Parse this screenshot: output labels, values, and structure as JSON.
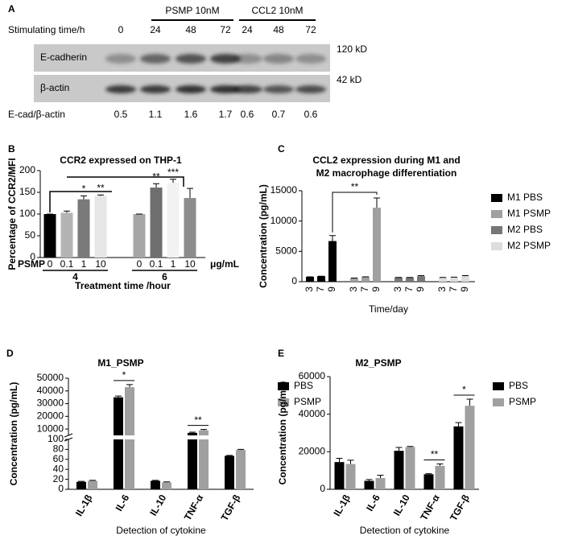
{
  "blot": {
    "label": "A",
    "treatments": [
      "PSMP 10nM",
      "CCL2 10nM"
    ],
    "time_label": "Stimulating time/h",
    "times": [
      "0",
      "24",
      "48",
      "72",
      "24",
      "48",
      "72"
    ],
    "rows": [
      {
        "name": "E-cadherin",
        "size": "120 kD"
      },
      {
        "name": "β-actin",
        "size": "42 kD"
      }
    ],
    "ratio_label": "E-cad/β-actin",
    "ratios": [
      0.5,
      1.1,
      1.6,
      1.7,
      0.6,
      0.7,
      0.6
    ]
  },
  "chart_data": [
    {
      "type": "bar",
      "label": "B",
      "title": "CCR2 expressed on THP-1",
      "y_label": "Percentage of CCR2/MFI",
      "x_label": "Treatment time /hour",
      "dose_label": "PSMP",
      "dose_unit": "μg/mL",
      "categories": [
        "0",
        "0.1",
        "1",
        "10",
        "0",
        "0.1",
        "1",
        "10"
      ],
      "groups": [
        "4",
        "6"
      ],
      "values": [
        100,
        103,
        134,
        142,
        100,
        161,
        172,
        137
      ],
      "errors": [
        0,
        4,
        8,
        2,
        0,
        9,
        8,
        22
      ],
      "colors": [
        "#000000",
        "#b4b4b4",
        "#7a7a7a",
        "#e6e6e6",
        "#a6a6a6",
        "#6e6e6e",
        "#f2f2f2",
        "#8c8c8c"
      ],
      "significance": [
        null,
        null,
        "*",
        "**",
        null,
        "**",
        "***",
        null
      ],
      "ylim": [
        0,
        200
      ],
      "yticks": [
        0,
        50,
        100,
        150,
        200
      ]
    },
    {
      "type": "grouped_bar",
      "label": "C",
      "title": [
        "CCL2 expression during M1 and",
        "M2 macrophage differentiation"
      ],
      "y_label": "Concentration (pg/mL)",
      "x_label": "Time/day",
      "categories": [
        "3",
        "7",
        "9"
      ],
      "group_by": "series",
      "series": [
        {
          "name": "M1 PBS",
          "color": "#000000",
          "values": [
            800,
            900,
            6700
          ],
          "errors": [
            0,
            0,
            900
          ]
        },
        {
          "name": "M1 PSMP",
          "color": "#a0a0a0",
          "values": [
            600,
            800,
            12200
          ],
          "errors": [
            0,
            0,
            1600
          ]
        },
        {
          "name": "M2 PBS",
          "color": "#777777",
          "values": [
            700,
            700,
            900
          ],
          "errors": [
            0,
            0,
            100
          ]
        },
        {
          "name": "M2 PSMP",
          "color": "#dddddd",
          "values": [
            700,
            750,
            900
          ],
          "errors": [
            0,
            0,
            100
          ]
        }
      ],
      "bracket_label": "**",
      "legend": "right",
      "ylim": [
        0,
        15000
      ],
      "yticks": [
        0,
        5000,
        10000,
        15000
      ]
    },
    {
      "type": "broken_bar",
      "label": "D",
      "title": "M1_PSMP",
      "y_label": "Concentration (pg/mL)",
      "x_label": "Detection of cytokine",
      "categories": [
        "IL-1β",
        "IL-6",
        "IL-10",
        "TNF-α",
        "TGF-β"
      ],
      "series": [
        {
          "name": "PBS",
          "color": "#000000",
          "values": [
            15,
            35000,
            17,
            7000,
            67
          ],
          "errors": [
            1,
            1000,
            1,
            500,
            1
          ]
        },
        {
          "name": "PSMP",
          "color": "#a0a0a0",
          "values": [
            17,
            43000,
            14,
            9000,
            79
          ],
          "errors": [
            1,
            2000,
            1,
            700,
            1
          ]
        }
      ],
      "significance": [
        null,
        "*",
        null,
        "**",
        null
      ],
      "legend": "right",
      "y_segments": [
        {
          "ylim": [
            0,
            100
          ],
          "yticks": [
            0,
            20,
            40,
            60,
            80,
            100
          ]
        },
        {
          "ylim": [
            5000,
            50000
          ],
          "yticks": [
            10000,
            20000,
            30000,
            40000,
            50000
          ]
        }
      ]
    },
    {
      "type": "grouped_bar",
      "label": "E",
      "title": "M2_PSMP",
      "y_label": "Concentration (pg/mL)",
      "x_label": "Detection of cytokine",
      "categories": [
        "IL-1β",
        "IL-6",
        "IL-10",
        "TNF-α",
        "TGF-β"
      ],
      "group_by": "category",
      "series": [
        {
          "name": "PBS",
          "color": "#000000",
          "values": [
            14500,
            4500,
            20500,
            8000,
            33500
          ],
          "errors": [
            2000,
            700,
            1800,
            300,
            2000
          ]
        },
        {
          "name": "PSMP",
          "color": "#a0a0a0",
          "values": [
            13500,
            6000,
            22500,
            12500,
            44500
          ],
          "errors": [
            2000,
            1500,
            300,
            1000,
            3500
          ]
        }
      ],
      "significance": [
        null,
        null,
        null,
        "**",
        "*"
      ],
      "legend": "right",
      "ylim": [
        0,
        60000
      ],
      "yticks": [
        0,
        20000,
        40000,
        60000
      ]
    }
  ]
}
